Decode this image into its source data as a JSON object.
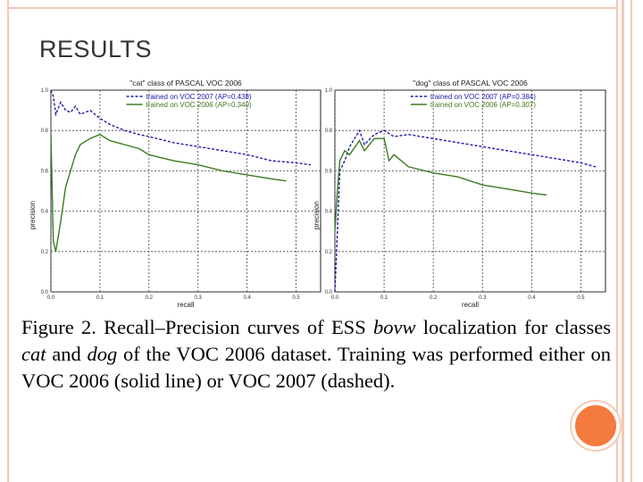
{
  "slide": {
    "title": "RESULTS"
  },
  "caption": {
    "prefix": "Figure 2. Recall–Precision curves of ESS ",
    "term1": "bovw",
    "mid1": " localization for classes ",
    "term2": "cat",
    "mid2": " and ",
    "term3": "dog",
    "suffix": " of the VOC 2006 dataset. Training was performed either on VOC 2006 (solid line) or VOC 2007 (dashed)."
  },
  "colors": {
    "voc2007": "#1a1aa8",
    "voc2006": "#3c7a1e",
    "accent": "#f47a3e",
    "frame": "#f4c9b4"
  },
  "chart_data": [
    {
      "type": "line",
      "title": "\"cat\" class of PASCAL VOC 2006",
      "xlabel": "recall",
      "ylabel": "precision",
      "xlim": [
        0.0,
        0.55
      ],
      "ylim": [
        0.0,
        1.0
      ],
      "xticks": [
        "0.0",
        "0.1",
        "0.2",
        "0.3",
        "0.4",
        "0.5"
      ],
      "yticks": [
        "0.0",
        "0.2",
        "0.4",
        "0.6",
        "0.8",
        "1.0"
      ],
      "grid": true,
      "legend": "top-right",
      "series": [
        {
          "name": "trained on VOC 2007 (AP=0.438)",
          "style": "dashed",
          "x": [
            0.0,
            0.005,
            0.01,
            0.02,
            0.03,
            0.04,
            0.05,
            0.06,
            0.08,
            0.1,
            0.12,
            0.15,
            0.18,
            0.2,
            0.25,
            0.3,
            0.35,
            0.4,
            0.45,
            0.5,
            0.53
          ],
          "y": [
            1.0,
            0.97,
            0.88,
            0.94,
            0.9,
            0.89,
            0.92,
            0.88,
            0.9,
            0.86,
            0.83,
            0.8,
            0.78,
            0.77,
            0.74,
            0.72,
            0.7,
            0.68,
            0.65,
            0.64,
            0.63
          ]
        },
        {
          "name": "trained on VOC 2006 (AP=0.340)",
          "style": "solid",
          "x": [
            0.0,
            0.005,
            0.01,
            0.02,
            0.03,
            0.04,
            0.05,
            0.06,
            0.08,
            0.1,
            0.12,
            0.15,
            0.18,
            0.2,
            0.25,
            0.3,
            0.35,
            0.4,
            0.45,
            0.48
          ],
          "y": [
            0.78,
            0.25,
            0.2,
            0.35,
            0.52,
            0.6,
            0.68,
            0.73,
            0.76,
            0.78,
            0.75,
            0.73,
            0.71,
            0.68,
            0.65,
            0.63,
            0.6,
            0.58,
            0.56,
            0.55
          ]
        }
      ]
    },
    {
      "type": "line",
      "title": "\"dog\" class of PASCAL VOC 2006",
      "xlabel": "recall",
      "ylabel": "precision",
      "xlim": [
        0.0,
        0.55
      ],
      "ylim": [
        0.0,
        1.0
      ],
      "xticks": [
        "0.0",
        "0.1",
        "0.2",
        "0.3",
        "0.4",
        "0.5"
      ],
      "yticks": [
        "0.0",
        "0.2",
        "0.4",
        "0.6",
        "0.8",
        "1.0"
      ],
      "grid": true,
      "legend": "top-right",
      "series": [
        {
          "name": "trained on VOC 2007 (AP=0.384)",
          "style": "dashed",
          "x": [
            0.0,
            0.005,
            0.01,
            0.02,
            0.03,
            0.05,
            0.06,
            0.08,
            0.1,
            0.12,
            0.15,
            0.2,
            0.25,
            0.3,
            0.35,
            0.4,
            0.45,
            0.5,
            0.53
          ],
          "y": [
            0.0,
            0.3,
            0.6,
            0.65,
            0.72,
            0.8,
            0.73,
            0.78,
            0.8,
            0.77,
            0.78,
            0.76,
            0.74,
            0.72,
            0.7,
            0.68,
            0.66,
            0.64,
            0.62
          ]
        },
        {
          "name": "trained on VOC 2006 (AP=0.307)",
          "style": "solid",
          "x": [
            0.0,
            0.005,
            0.01,
            0.02,
            0.03,
            0.05,
            0.06,
            0.08,
            0.1,
            0.11,
            0.12,
            0.15,
            0.2,
            0.25,
            0.3,
            0.35,
            0.4,
            0.43
          ],
          "y": [
            0.3,
            0.5,
            0.65,
            0.7,
            0.68,
            0.75,
            0.7,
            0.76,
            0.76,
            0.65,
            0.68,
            0.62,
            0.59,
            0.57,
            0.53,
            0.51,
            0.49,
            0.48
          ]
        }
      ]
    }
  ]
}
